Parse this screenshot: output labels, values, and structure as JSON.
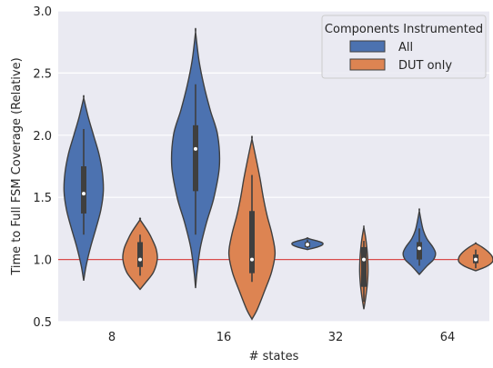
{
  "chart_data": {
    "type": "violin",
    "title": "",
    "xlabel": "# states",
    "ylabel": "Time to Full FSM Coverage (Relative)",
    "categories": [
      "8",
      "16",
      "32",
      "64"
    ],
    "ylim": [
      0.5,
      3.0
    ],
    "yticks": [
      "0.5",
      "1.0",
      "1.5",
      "2.0",
      "2.5",
      "3.0"
    ],
    "grid": true,
    "legend": {
      "title": "Components Instrumented",
      "position": "top-right"
    },
    "reference_line": {
      "y": 1.0,
      "color": "#d84b4b"
    },
    "series": [
      {
        "name": "All",
        "color": "#4c72b0",
        "violins": [
          {
            "category": "8",
            "min": 0.83,
            "max": 2.3,
            "q1": 1.37,
            "median": 1.53,
            "q3": 1.75,
            "whisker": [
              1.2,
              2.05
            ],
            "profile": [
              [
                0.83,
                0.0
              ],
              [
                0.95,
                0.1
              ],
              [
                1.1,
                0.28
              ],
              [
                1.25,
                0.5
              ],
              [
                1.4,
                0.7
              ],
              [
                1.55,
                0.8
              ],
              [
                1.7,
                0.76
              ],
              [
                1.85,
                0.62
              ],
              [
                2.0,
                0.4
              ],
              [
                2.15,
                0.18
              ],
              [
                2.3,
                0.0
              ]
            ]
          },
          {
            "category": "16",
            "min": 0.77,
            "max": 2.83,
            "q1": 1.55,
            "median": 1.89,
            "q3": 2.08,
            "whisker": [
              1.2,
              2.41
            ],
            "profile": [
              [
                0.77,
                0.0
              ],
              [
                0.9,
                0.06
              ],
              [
                1.1,
                0.2
              ],
              [
                1.3,
                0.45
              ],
              [
                1.5,
                0.75
              ],
              [
                1.75,
                0.97
              ],
              [
                2.0,
                0.9
              ],
              [
                2.2,
                0.6
              ],
              [
                2.4,
                0.34
              ],
              [
                2.6,
                0.14
              ],
              [
                2.83,
                0.0
              ]
            ]
          },
          {
            "category": "32",
            "min": 1.08,
            "max": 1.17,
            "q1": 1.1,
            "median": 1.12,
            "q3": 1.14,
            "whisker": [
              1.09,
              1.16
            ],
            "profile": [
              [
                1.08,
                0.0
              ],
              [
                1.1,
                0.4
              ],
              [
                1.12,
                0.62
              ],
              [
                1.14,
                0.55
              ],
              [
                1.17,
                0.0
              ]
            ]
          },
          {
            "category": "64",
            "min": 0.88,
            "max": 1.39,
            "q1": 1.0,
            "median": 1.09,
            "q3": 1.14,
            "whisker": [
              0.95,
              1.25
            ],
            "profile": [
              [
                0.88,
                0.0
              ],
              [
                0.95,
                0.32
              ],
              [
                1.0,
                0.58
              ],
              [
                1.05,
                0.66
              ],
              [
                1.1,
                0.55
              ],
              [
                1.17,
                0.3
              ],
              [
                1.25,
                0.14
              ],
              [
                1.39,
                0.0
              ]
            ]
          }
        ]
      },
      {
        "name": "DUT only",
        "color": "#dd8452",
        "violins": [
          {
            "category": "8",
            "min": 0.76,
            "max": 1.32,
            "q1": 0.94,
            "median": 1.0,
            "q3": 1.14,
            "whisker": [
              0.87,
              1.2
            ],
            "profile": [
              [
                0.76,
                0.0
              ],
              [
                0.82,
                0.25
              ],
              [
                0.9,
                0.55
              ],
              [
                1.0,
                0.7
              ],
              [
                1.08,
                0.66
              ],
              [
                1.15,
                0.52
              ],
              [
                1.22,
                0.34
              ],
              [
                1.32,
                0.0
              ]
            ]
          },
          {
            "category": "16",
            "min": 0.52,
            "max": 1.97,
            "q1": 0.89,
            "median": 1.0,
            "q3": 1.39,
            "whisker": [
              0.82,
              1.68
            ],
            "profile": [
              [
                0.52,
                0.0
              ],
              [
                0.6,
                0.22
              ],
              [
                0.75,
                0.52
              ],
              [
                0.9,
                0.8
              ],
              [
                1.05,
                0.94
              ],
              [
                1.2,
                0.82
              ],
              [
                1.35,
                0.62
              ],
              [
                1.5,
                0.46
              ],
              [
                1.65,
                0.33
              ],
              [
                1.8,
                0.18
              ],
              [
                1.97,
                0.0
              ]
            ]
          },
          {
            "category": "32",
            "min": 0.6,
            "max": 1.26,
            "q1": 0.78,
            "median": 1.0,
            "q3": 1.1,
            "whisker": [
              0.66,
              1.15
            ],
            "profile": [
              [
                0.6,
                0.0
              ],
              [
                0.7,
                0.08
              ],
              [
                0.8,
                0.14
              ],
              [
                0.9,
                0.17
              ],
              [
                1.0,
                0.16
              ],
              [
                1.1,
                0.12
              ],
              [
                1.18,
                0.07
              ],
              [
                1.26,
                0.0
              ]
            ]
          },
          {
            "category": "64",
            "min": 0.91,
            "max": 1.13,
            "q1": 0.97,
            "median": 1.0,
            "q3": 1.04,
            "whisker": [
              0.93,
              1.08
            ],
            "profile": [
              [
                0.91,
                0.0
              ],
              [
                0.94,
                0.4
              ],
              [
                0.98,
                0.68
              ],
              [
                1.02,
                0.68
              ],
              [
                1.06,
                0.52
              ],
              [
                1.1,
                0.26
              ],
              [
                1.13,
                0.0
              ]
            ]
          }
        ]
      }
    ]
  }
}
